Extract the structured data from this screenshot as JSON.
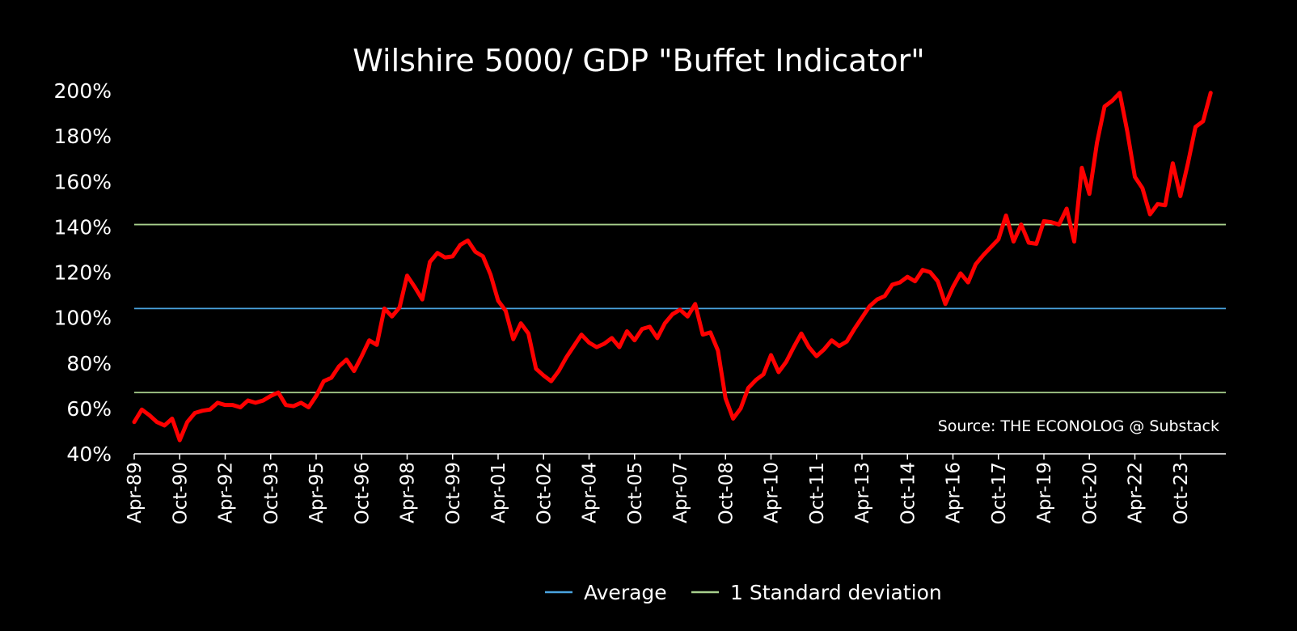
{
  "chart_data": {
    "type": "line",
    "title": "Wilshire 5000/ GDP \"Buffet Indicator\"",
    "xlabel": "",
    "ylabel": "",
    "ylim": [
      40,
      200
    ],
    "y_ticks": [
      "200%",
      "180%",
      "160%",
      "140%",
      "120%",
      "100%",
      "80%",
      "60%",
      "40%"
    ],
    "y_tick_values": [
      200,
      180,
      160,
      140,
      120,
      100,
      80,
      60,
      40
    ],
    "x_tick_labels": [
      "Apr-89",
      "Oct-90",
      "Apr-92",
      "Oct-93",
      "Apr-95",
      "Oct-96",
      "Apr-98",
      "Oct-99",
      "Apr-01",
      "Oct-02",
      "Apr-04",
      "Oct-05",
      "Apr-07",
      "Oct-08",
      "Apr-10",
      "Oct-11",
      "Apr-13",
      "Oct-14",
      "Apr-16",
      "Oct-17",
      "Apr-19",
      "Oct-20",
      "Apr-22",
      "Oct-23"
    ],
    "x_tick_index": [
      0,
      6,
      12,
      18,
      24,
      30,
      36,
      42,
      48,
      54,
      60,
      66,
      72,
      78,
      84,
      90,
      96,
      102,
      108,
      114,
      120,
      126,
      132,
      138
    ],
    "x_count": 145,
    "series": [
      {
        "color": "#ff0000",
        "values": [
          54,
          59.5,
          57,
          54,
          52.5,
          55.5,
          46,
          54,
          58,
          59,
          59.5,
          62.5,
          61.5,
          61.5,
          60.5,
          63.5,
          62.5,
          63.5,
          65.5,
          67,
          61.5,
          61,
          62.5,
          60.5,
          65.5,
          72,
          73.5,
          78.5,
          81.5,
          76.5,
          83,
          90,
          88,
          104,
          100.5,
          104.5,
          118.5,
          113.5,
          108,
          124.5,
          128.5,
          126.5,
          127,
          132,
          134,
          129,
          127,
          119,
          107.5,
          103,
          90.5,
          97.5,
          93,
          77.5,
          74.5,
          72,
          76.5,
          82.5,
          87.5,
          92.5,
          89,
          87,
          88.5,
          91,
          87,
          94,
          90,
          95,
          96,
          91,
          97.5,
          101.5,
          103.5,
          100.5,
          106,
          92.5,
          93.5,
          85.5,
          64.5,
          55.5,
          60,
          69,
          72.5,
          75,
          83.5,
          76,
          80.5,
          87,
          93,
          87,
          83,
          86,
          90,
          87.5,
          89.5,
          95,
          100,
          105,
          108,
          109.5,
          114.5,
          115.5,
          118,
          116,
          121,
          120,
          116,
          106,
          113.5,
          119.5,
          115.5,
          123.5,
          127.5,
          131,
          134.5,
          145,
          133.5,
          141,
          133,
          132.5,
          142.5,
          142,
          141,
          148,
          133.5,
          166,
          154.5,
          177,
          193,
          195.5,
          199,
          182,
          162,
          157,
          145.5,
          150,
          149.5,
          168,
          153.5,
          168,
          184,
          186.5,
          199
        ]
      }
    ],
    "reference_lines": [
      {
        "name": "Average",
        "value": 104,
        "color": "#4aa3df"
      },
      {
        "name": "1 Standard deviation",
        "value": 141,
        "color": "#a8d08d"
      },
      {
        "name": "1 Standard deviation",
        "value": 67,
        "color": "#a8d08d"
      }
    ],
    "legend": {
      "placement": "bottom-center",
      "items": [
        {
          "label": "Average",
          "color": "#4aa3df"
        },
        {
          "label": "1 Standard deviation",
          "color": "#a8d08d"
        }
      ]
    },
    "annotation": "Source: THE ECONOLOG @ Substack",
    "grid": false,
    "background": "#000000"
  }
}
